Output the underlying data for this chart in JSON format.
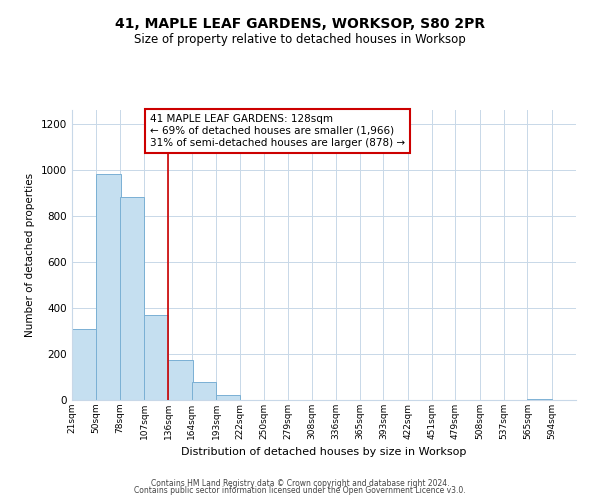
{
  "title": "41, MAPLE LEAF GARDENS, WORKSOP, S80 2PR",
  "subtitle": "Size of property relative to detached houses in Worksop",
  "xlabel": "Distribution of detached houses by size in Worksop",
  "ylabel": "Number of detached properties",
  "bar_left_edges": [
    21,
    50,
    78,
    107,
    136,
    164,
    193,
    222,
    250,
    279,
    308,
    336,
    365,
    393,
    422,
    451,
    479,
    508,
    537,
    565
  ],
  "bar_heights": [
    310,
    980,
    880,
    370,
    175,
    80,
    20,
    0,
    0,
    0,
    0,
    0,
    0,
    0,
    0,
    0,
    0,
    0,
    0,
    5
  ],
  "bin_width": 29,
  "bar_color": "#c5dff0",
  "bar_edgecolor": "#7ab0d4",
  "tick_labels": [
    "21sqm",
    "50sqm",
    "78sqm",
    "107sqm",
    "136sqm",
    "164sqm",
    "193sqm",
    "222sqm",
    "250sqm",
    "279sqm",
    "308sqm",
    "336sqm",
    "365sqm",
    "393sqm",
    "422sqm",
    "451sqm",
    "479sqm",
    "508sqm",
    "537sqm",
    "565sqm",
    "594sqm"
  ],
  "property_line_x": 136,
  "property_line_color": "#cc0000",
  "annotation_line1": "41 MAPLE LEAF GARDENS: 128sqm",
  "annotation_line2": "← 69% of detached houses are smaller (1,966)",
  "annotation_line3": "31% of semi-detached houses are larger (878) →",
  "ylim": [
    0,
    1260
  ],
  "xlim": [
    21,
    623
  ],
  "yticks": [
    0,
    200,
    400,
    600,
    800,
    1000,
    1200
  ],
  "background_color": "#ffffff",
  "grid_color": "#c8d8e8",
  "footer_line1": "Contains HM Land Registry data © Crown copyright and database right 2024.",
  "footer_line2": "Contains public sector information licensed under the Open Government Licence v3.0."
}
